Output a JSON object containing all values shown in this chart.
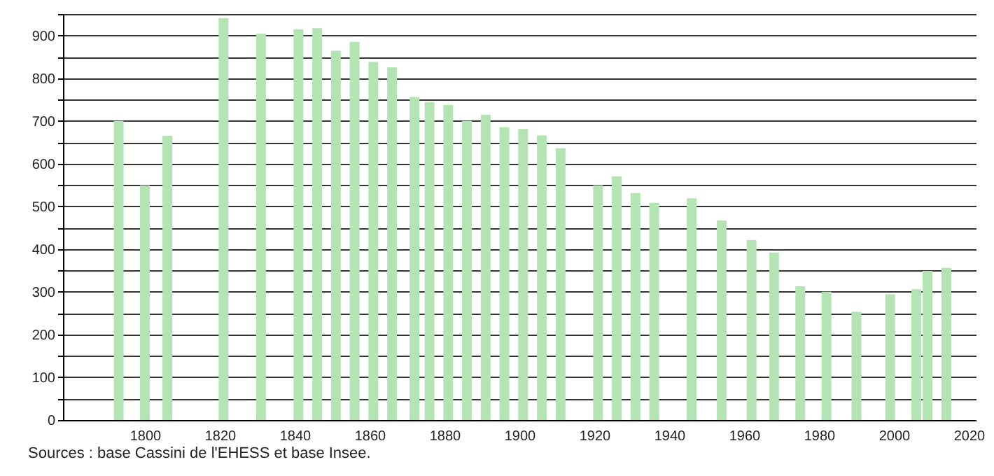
{
  "chart_data": {
    "type": "bar",
    "x": [
      1793,
      1800,
      1806,
      1821,
      1831,
      1841,
      1846,
      1851,
      1856,
      1861,
      1866,
      1872,
      1876,
      1881,
      1886,
      1891,
      1896,
      1901,
      1906,
      1911,
      1921,
      1926,
      1931,
      1936,
      1946,
      1954,
      1962,
      1968,
      1975,
      1982,
      1990,
      1999,
      2006,
      2009,
      2014
    ],
    "values": [
      700,
      549,
      665,
      940,
      904,
      914,
      917,
      864,
      885,
      838,
      825,
      756,
      744,
      737,
      700,
      714,
      685,
      681,
      666,
      636,
      549,
      570,
      531,
      508,
      519,
      467,
      421,
      392,
      313,
      300,
      253,
      294,
      306,
      349,
      356
    ],
    "color": "#b4e4b4",
    "xlim": [
      1780,
      2020
    ],
    "xticks": [
      1800,
      1820,
      1840,
      1860,
      1880,
      1900,
      1920,
      1940,
      1960,
      1980,
      2000,
      2020
    ],
    "ylim": [
      0,
      950
    ],
    "yticks": [
      0,
      {
        "value": 50,
        "label": null
      },
      100,
      {
        "value": 150,
        "label": null
      },
      200,
      {
        "value": 250,
        "label": null
      },
      300,
      {
        "value": 350,
        "label": null
      },
      400,
      {
        "value": 450,
        "label": null
      },
      500,
      {
        "value": 550,
        "label": null
      },
      600,
      {
        "value": 650,
        "label": null
      },
      700,
      {
        "value": 750,
        "label": null
      },
      800,
      {
        "value": 850,
        "label": null
      },
      900,
      {
        "value": 950,
        "label": null
      }
    ],
    "grid": "y",
    "annotations": [
      "Sources : base Cassini de l'EHESS et base Insee."
    ]
  }
}
